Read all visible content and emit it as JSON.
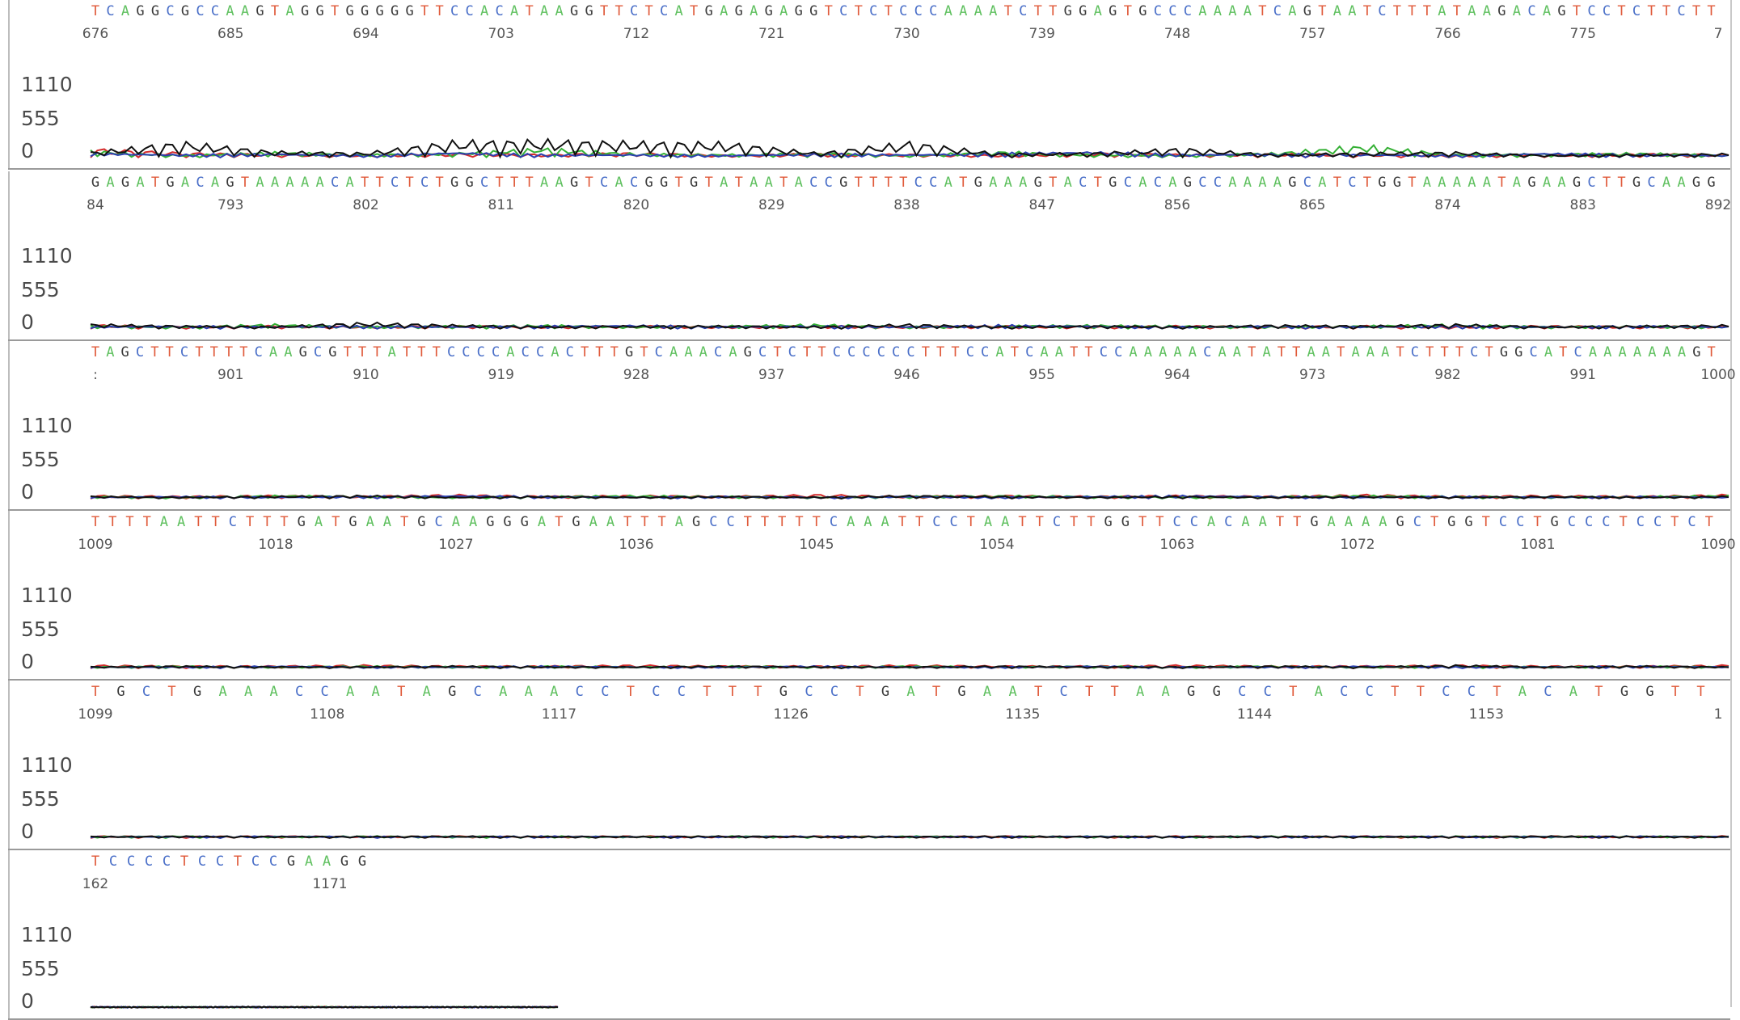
{
  "chart_data": {
    "type": "line",
    "y_ticks": [
      "1110",
      "555",
      "0"
    ],
    "ylim": [
      0,
      1110
    ],
    "base_colors": {
      "A": "#5fc05f",
      "C": "#4a6fc8",
      "G": "#3a3a3a",
      "T": "#e05a3a"
    },
    "trace_colors": {
      "A": "#35b035",
      "C": "#2b3fb0",
      "G": "#111111",
      "T": "#d42c2c"
    },
    "series": [
      {
        "name": "A"
      },
      {
        "name": "C"
      },
      {
        "name": "G"
      },
      {
        "name": "T"
      }
    ],
    "rows": [
      {
        "sequence": "TCAGGCGCCAAGTAGGTGGGGGTTCCACATAAGGTTCTCATGAGAGAGGTCTCTCCCAAAATCTTGGAGTGCCCAAAATCAGTAATCTTTATAAGACAGTCCTCTTCTT",
        "positions": [
          "676",
          "685",
          "694",
          "703",
          "712",
          "721",
          "730",
          "739",
          "748",
          "757",
          "766",
          "775",
          "7"
        ],
        "peaks": {
          "A": [
            90,
            30,
            70,
            40,
            60,
            120,
            50,
            40,
            60,
            30,
            80,
            40,
            30,
            60,
            160,
            40,
            50,
            60,
            30
          ],
          "C": [
            60,
            40,
            50,
            30,
            70,
            40,
            40,
            30,
            50,
            40,
            60,
            80,
            40,
            50,
            40,
            30,
            60,
            40,
            30
          ],
          "G": [
            70,
            200,
            80,
            60,
            210,
            220,
            200,
            190,
            60,
            200,
            50,
            60,
            120,
            40,
            60,
            70,
            30,
            40,
            50
          ],
          "T": [
            110,
            60,
            40,
            30,
            50,
            40,
            60,
            30,
            50,
            40,
            30,
            60,
            40,
            50,
            40,
            30,
            40,
            50,
            40
          ]
        }
      },
      {
        "sequence": "GAGATGACAGTAAAAACATTCTCTGGCTTTAAGTCACGGTGTATAATACCGTTTTCCATGAAAGTACTGCACAGCCAAAAGCATCTGGTAAAAATAGAAGCTTGCAAGG",
        "positions": [
          "84",
          "793",
          "802",
          "811",
          "820",
          "829",
          "838",
          "847",
          "856",
          "865",
          "874",
          "883",
          "892"
        ],
        "peaks": {
          "A": [
            40,
            30,
            60,
            30,
            40,
            50,
            30,
            40,
            60,
            30,
            40,
            50,
            40,
            30,
            40,
            60,
            30,
            40,
            30
          ],
          "C": [
            30,
            40,
            30,
            40,
            30,
            40,
            50,
            30,
            40,
            30,
            50,
            40,
            30,
            40,
            30,
            40,
            30,
            40,
            30
          ],
          "G": [
            60,
            40,
            30,
            80,
            50,
            30,
            40,
            40,
            30,
            60,
            30,
            40,
            30,
            50,
            40,
            60,
            30,
            40,
            50
          ],
          "T": [
            50,
            30,
            40,
            30,
            40,
            30,
            40,
            30,
            40,
            30,
            40,
            30,
            40,
            30,
            40,
            30,
            40,
            30,
            40
          ]
        }
      },
      {
        "sequence": "TAGCTTCTTTTCAAGCGTTTATTTCCCCACCACTTTGTCAAACAGCTCTTCCCCCCTTTCCATCAATTCCAAAAACAATATTAATAAATCTTTCTGGCATCAAAAAAAGT",
        "positions": [
          ":",
          "901",
          "910",
          "919",
          "928",
          "937",
          "946",
          "955",
          "964",
          "973",
          "982",
          "991",
          "1000"
        ],
        "peaks": {
          "A": [
            30,
            20,
            40,
            30,
            20,
            30,
            40,
            30,
            20,
            30,
            40,
            30,
            20,
            30,
            40,
            30,
            20,
            30,
            40
          ],
          "C": [
            20,
            30,
            20,
            30,
            40,
            30,
            20,
            30,
            20,
            30,
            20,
            30,
            40,
            30,
            20,
            30,
            20,
            30,
            20
          ],
          "G": [
            30,
            20,
            30,
            40,
            20,
            30,
            20,
            30,
            20,
            40,
            30,
            20,
            30,
            20,
            30,
            20,
            30,
            20,
            30
          ],
          "T": [
            40,
            30,
            40,
            30,
            50,
            30,
            40,
            30,
            50,
            30,
            40,
            30,
            40,
            30,
            50,
            30,
            40,
            30,
            50
          ]
        }
      },
      {
        "sequence": "TTTTAATTCTTTGATGAATGCAAGGGATGAATTTAGCCTTTTTCAAATTCCTAATTCTTGGTTCCACAATTGAAAAGCTGGTCCTGCCCTCCTCT",
        "positions": [
          "1009",
          "1018",
          "1027",
          "1036",
          "1045",
          "1054",
          "1063",
          "1072",
          "1081",
          "1090"
        ],
        "peaks": {
          "A": [
            20,
            30,
            20,
            30,
            20,
            30,
            20,
            30,
            20,
            30,
            20,
            30,
            20,
            30,
            20,
            30,
            20,
            30,
            20
          ],
          "C": [
            20,
            20,
            30,
            20,
            20,
            30,
            20,
            20,
            30,
            20,
            20,
            30,
            20,
            20,
            30,
            20,
            20,
            30,
            20
          ],
          "G": [
            20,
            30,
            20,
            20,
            30,
            20,
            20,
            30,
            20,
            20,
            30,
            20,
            20,
            30,
            20,
            40,
            20,
            30,
            20
          ],
          "T": [
            40,
            30,
            30,
            40,
            30,
            30,
            40,
            30,
            30,
            40,
            30,
            30,
            40,
            30,
            30,
            40,
            30,
            30,
            40
          ]
        }
      },
      {
        "sequence": "TGCTGAAACCAATAGCAAACCTCCTTTGCCTGATGAATCTTAAGGCCTACCTTCCTACATGGTT",
        "positions": [
          "1099",
          "1108",
          "1117",
          "1126",
          "1135",
          "1144",
          "1153",
          "1"
        ],
        "peaks": {
          "A": [
            20,
            25,
            20,
            25,
            20,
            25,
            20,
            25,
            20,
            25,
            20,
            25,
            20,
            25,
            20,
            25,
            20,
            25,
            20
          ],
          "C": [
            20,
            20,
            25,
            20,
            20,
            25,
            20,
            20,
            25,
            20,
            20,
            25,
            20,
            20,
            25,
            20,
            20,
            25,
            20
          ],
          "G": [
            20,
            25,
            20,
            20,
            25,
            20,
            20,
            25,
            20,
            20,
            25,
            20,
            20,
            25,
            20,
            20,
            25,
            20,
            20
          ],
          "T": [
            25,
            20,
            25,
            20,
            25,
            20,
            25,
            20,
            25,
            20,
            25,
            20,
            25,
            20,
            25,
            20,
            25,
            20,
            25
          ]
        }
      },
      {
        "sequence": "TCCCCTCCTCCGAAGG",
        "positions": [
          "162",
          "1171"
        ],
        "peaks": {
          "A": [
            10,
            15,
            10,
            15,
            10,
            15,
            10
          ],
          "C": [
            15,
            10,
            15,
            10,
            15,
            10,
            15
          ],
          "G": [
            10,
            10,
            15,
            10,
            10,
            15,
            10
          ],
          "T": [
            15,
            10,
            10,
            15,
            10,
            10,
            15
          ]
        }
      }
    ]
  }
}
